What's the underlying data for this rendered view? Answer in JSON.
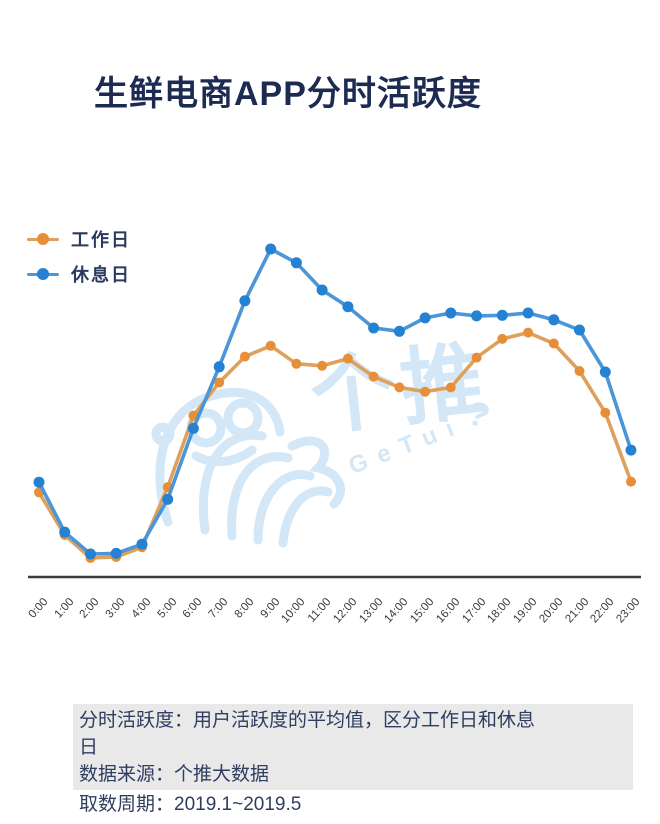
{
  "header": {
    "title": "生鲜电商APP分时活跃度",
    "title_color": "#1d2b52"
  },
  "legend": [
    {
      "label": "工作日",
      "line_color": "#dfa05c",
      "marker_color": "#e78f38"
    },
    {
      "label": "休息日",
      "line_color": "#4a96d8",
      "marker_color": "#2581d1"
    }
  ],
  "watermark": {
    "text_cn": "个推",
    "text_en": "GeTui",
    "question_mark": "?",
    "color": "#d3e7f7"
  },
  "axis": {
    "line_color": "#3c3c3c",
    "tick_color": "#3a3a3a"
  },
  "footnote": {
    "definition": "分时活跃度：用户活跃度的平均值，区分工作日和休息日",
    "source": "数据来源：个推大数据",
    "period": "取数周期：2019.1~2019.5",
    "background": "#e9e9ea",
    "text_color": "#2f3d5f"
  },
  "chart_data": {
    "type": "line",
    "title": "生鲜电商APP分时活跃度",
    "xlabel": "",
    "ylabel": "",
    "ylim": [
      0,
      105
    ],
    "y_axis_visible": false,
    "grid": false,
    "legend_position": "top-left",
    "value_scale_note": "relative activity index, rest-day 9:00 peak = 100",
    "categories": [
      "0:00",
      "1:00",
      "2:00",
      "3:00",
      "4:00",
      "5:00",
      "6:00",
      "7:00",
      "8:00",
      "9:00",
      "10:00",
      "11:00",
      "12:00",
      "13:00",
      "14:00",
      "15:00",
      "16:00",
      "17:00",
      "18:00",
      "19:00",
      "20:00",
      "21:00",
      "22:00",
      "23:00"
    ],
    "series": [
      {
        "name": "工作日",
        "id": "workday",
        "line_color": "#dfa05c",
        "marker_color": "#e78f38",
        "marker_r": 5,
        "values": [
          25.8,
          12.8,
          5.8,
          6.1,
          9.1,
          27.4,
          49.2,
          59.3,
          67.2,
          70.5,
          65.0,
          64.4,
          66.6,
          61.1,
          57.8,
          56.5,
          57.8,
          66.9,
          72.6,
          74.5,
          71.2,
          62.8,
          50.1,
          29.1
        ]
      },
      {
        "name": "休息日",
        "id": "restday",
        "line_color": "#4a96d8",
        "marker_color": "#2581d1",
        "marker_r": 5.5,
        "values": [
          28.9,
          13.7,
          7.0,
          7.2,
          10.0,
          23.7,
          45.3,
          64.1,
          84.2,
          100.0,
          95.8,
          87.5,
          82.4,
          75.9,
          74.9,
          79.0,
          80.5,
          79.6,
          79.8,
          80.5,
          78.4,
          75.3,
          62.5,
          38.7
        ]
      }
    ]
  }
}
